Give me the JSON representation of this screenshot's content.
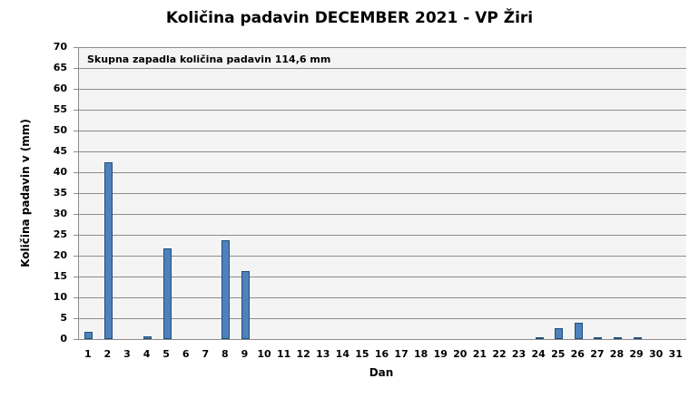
{
  "chart_data": {
    "type": "bar",
    "title": "Količina padavin DECEMBER 2021 - VP Žiri",
    "xlabel": "Dan",
    "ylabel": "Količina padavin v  (mm)",
    "annotation": "Skupna zapadla količina padavin 114,6 mm",
    "ylim": [
      0,
      70
    ],
    "yticks": [
      0,
      5,
      10,
      15,
      20,
      25,
      30,
      35,
      40,
      45,
      50,
      55,
      60,
      65,
      70
    ],
    "grid": true,
    "legend": "none",
    "categories": [
      "1",
      "2",
      "3",
      "4",
      "5",
      "6",
      "7",
      "8",
      "9",
      "10",
      "11",
      "12",
      "13",
      "14",
      "15",
      "16",
      "17",
      "18",
      "19",
      "20",
      "21",
      "22",
      "23",
      "24",
      "25",
      "26",
      "27",
      "28",
      "29",
      "30",
      "31"
    ],
    "values": [
      1.8,
      42.5,
      0,
      0.7,
      21.7,
      0,
      0,
      23.6,
      16.2,
      0,
      0,
      0,
      0,
      0,
      0,
      0,
      0,
      0,
      0,
      0,
      0,
      0,
      0,
      0.5,
      2.7,
      3.9,
      0.3,
      0.3,
      0.3,
      0,
      0
    ],
    "bar_color": "#4f81bd",
    "bar_border_color": "#1f4e79",
    "plot_background": "#f4f4f4",
    "grid_color": "#8c8c8c"
  }
}
